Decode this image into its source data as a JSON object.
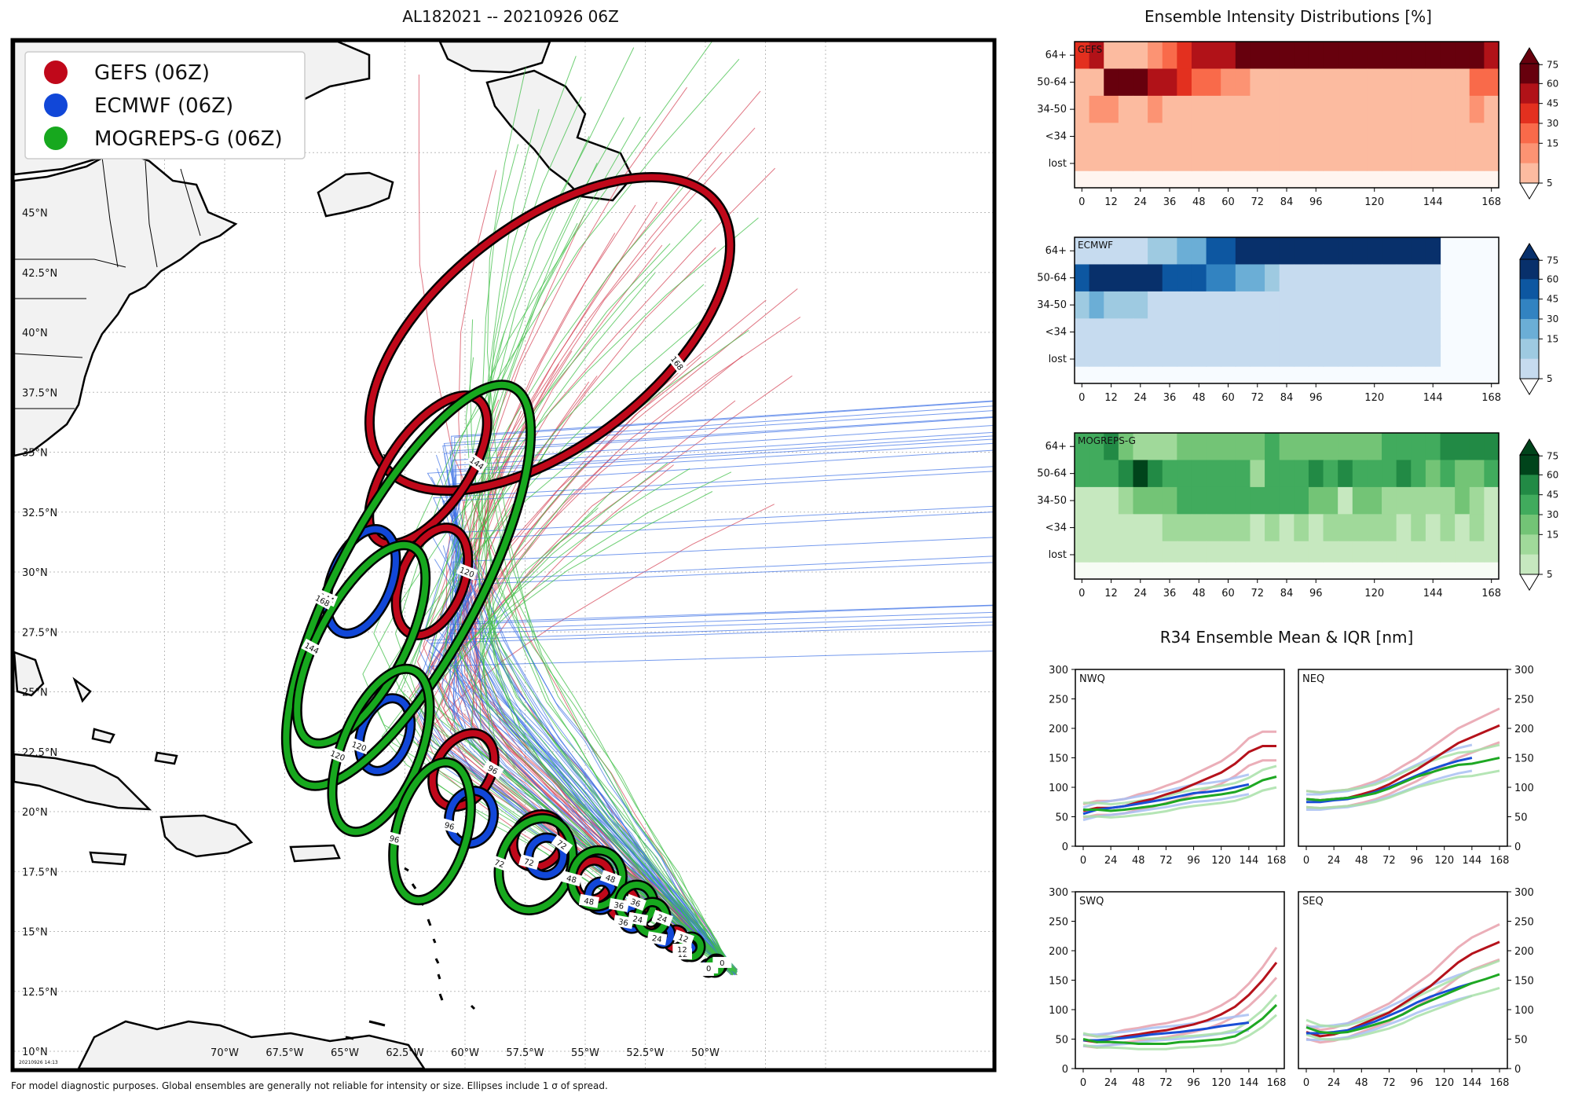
{
  "map": {
    "title": "AL182021 -- 20210926 06Z",
    "footnote": "For model diagnostic purposes. Global ensembles are generally not reliable for intensity or size. Ellipses include 1 σ of spread.",
    "stamp": "20210926 14:13",
    "lat_labels": [
      "45°N",
      "42.5°N",
      "40°N",
      "37.5°N",
      "35°N",
      "32.5°N",
      "30°N",
      "27.5°N",
      "25°N",
      "22.5°N",
      "20°N",
      "17.5°N",
      "15°N",
      "12.5°N",
      "10°N"
    ],
    "lon_labels": [
      "70°W",
      "67.5°W",
      "65°W",
      "62.5°W",
      "60°W",
      "57.5°W",
      "55°W",
      "52.5°W",
      "50°W"
    ],
    "legend": [
      {
        "name": "GEFS (06Z)",
        "color": "#c0081a"
      },
      {
        "name": "ECMWF (06Z)",
        "color": "#1147d8"
      },
      {
        "name": "MOGREPS-G (06Z)",
        "color": "#17a81e"
      }
    ]
  },
  "intensity": {
    "title": "Ensemble Intensity Distributions [%]",
    "rows": [
      "64+",
      "50-64",
      "34-50",
      "<34",
      "lost"
    ],
    "xticks": [
      "0",
      "12",
      "24",
      "36",
      "48",
      "60",
      "72",
      "84",
      "96",
      "120",
      "144",
      "168"
    ],
    "colorbar_ticks": [
      "75",
      "60",
      "45",
      "30",
      "15",
      "5"
    ],
    "panels": [
      {
        "name": "GEFS",
        "colors": [
          "#fee3d6",
          "#fcbba0",
          "#fc9373",
          "#f96a4a",
          "#e3301f",
          "#b11218",
          "#67000d"
        ]
      },
      {
        "name": "ECMWF",
        "colors": [
          "#e5eff9",
          "#c6dbef",
          "#9ecae1",
          "#6baed6",
          "#3283c1",
          "#0d57a1",
          "#08306b"
        ]
      },
      {
        "name": "MOGREPS-G",
        "colors": [
          "#e5f5e0",
          "#c6e8bf",
          "#a0d99a",
          "#73c476",
          "#41ab5d",
          "#228a45",
          "#00441b"
        ]
      }
    ]
  },
  "r34": {
    "title": "R34 Ensemble Mean & IQR [nm]",
    "yticks": [
      "300",
      "250",
      "200",
      "150",
      "100",
      "50",
      "0"
    ],
    "xticks": [
      "0",
      "24",
      "48",
      "72",
      "96",
      "120",
      "144",
      "168"
    ],
    "quadrants": [
      "NWQ",
      "NEQ",
      "SWQ",
      "SEQ"
    ]
  },
  "chart_data": {
    "type": "heatmap",
    "intensity_distributions": {
      "hours": [
        0,
        6,
        12,
        18,
        24,
        30,
        36,
        42,
        48,
        54,
        60,
        66,
        72,
        78,
        84,
        90,
        96,
        102,
        108,
        114,
        120,
        126,
        132,
        138,
        144,
        150,
        156,
        162,
        168
      ],
      "GEFS": {
        "64+": [
          45,
          60,
          5,
          5,
          10,
          20,
          40,
          50,
          60,
          60,
          70,
          75,
          75,
          75,
          75,
          75,
          75,
          75,
          75,
          75,
          75,
          75,
          75,
          75,
          75,
          75,
          75,
          75,
          60
        ],
        "50-64": [
          5,
          5,
          75,
          75,
          75,
          60,
          60,
          45,
          30,
          30,
          15,
          15,
          5,
          5,
          5,
          5,
          5,
          5,
          5,
          5,
          5,
          5,
          5,
          5,
          5,
          5,
          5,
          30,
          30
        ],
        "34-50": [
          5,
          15,
          15,
          5,
          5,
          15,
          5,
          5,
          5,
          5,
          5,
          5,
          5,
          5,
          5,
          5,
          5,
          5,
          5,
          5,
          5,
          5,
          5,
          5,
          5,
          5,
          5,
          15,
          5
        ],
        "<34": [
          5,
          5,
          5,
          5,
          5,
          5,
          5,
          5,
          5,
          5,
          5,
          5,
          5,
          5,
          5,
          5,
          5,
          5,
          5,
          5,
          5,
          5,
          5,
          5,
          5,
          5,
          5,
          5,
          5
        ],
        "lost": [
          5,
          5,
          5,
          5,
          5,
          5,
          5,
          5,
          5,
          5,
          5,
          5,
          5,
          5,
          5,
          5,
          5,
          5,
          5,
          5,
          5,
          5,
          5,
          5,
          5,
          5,
          5,
          5,
          5
        ]
      },
      "ECMWF": {
        "64+": [
          5,
          5,
          5,
          5,
          5,
          15,
          15,
          30,
          30,
          60,
          60,
          75,
          75,
          75,
          75,
          75,
          75,
          75,
          75,
          75,
          75,
          75,
          75,
          75,
          75
        ],
        "50-64": [
          60,
          75,
          75,
          75,
          75,
          75,
          60,
          60,
          60,
          45,
          45,
          30,
          30,
          15,
          5,
          5,
          5,
          5,
          5,
          5,
          5,
          5,
          5,
          5,
          5
        ],
        "34-50": [
          15,
          30,
          15,
          15,
          15,
          5,
          5,
          5,
          5,
          5,
          5,
          5,
          5,
          5,
          5,
          5,
          5,
          5,
          5,
          5,
          5,
          5,
          5,
          5,
          5
        ],
        "<34": [
          5,
          5,
          5,
          5,
          5,
          5,
          5,
          5,
          5,
          5,
          5,
          5,
          5,
          5,
          5,
          5,
          5,
          5,
          5,
          5,
          5,
          5,
          5,
          5,
          5
        ],
        "lost": [
          5,
          5,
          5,
          5,
          5,
          5,
          5,
          5,
          5,
          5,
          5,
          5,
          5,
          5,
          5,
          5,
          5,
          5,
          5,
          5,
          5,
          5,
          5,
          5,
          5
        ]
      },
      "MOGREPS-G": {
        "64+": [
          45,
          45,
          60,
          30,
          15,
          15,
          15,
          30,
          30,
          30,
          30,
          30,
          30,
          45,
          30,
          30,
          30,
          30,
          30,
          30,
          30,
          45,
          45,
          45,
          45,
          60,
          60,
          60,
          60
        ],
        "50-64": [
          45,
          45,
          45,
          60,
          75,
          60,
          45,
          45,
          45,
          45,
          45,
          45,
          15,
          45,
          45,
          45,
          60,
          45,
          60,
          45,
          45,
          45,
          60,
          45,
          30,
          45,
          30,
          30,
          45
        ],
        "34-50": [
          5,
          5,
          5,
          15,
          30,
          30,
          30,
          45,
          45,
          45,
          45,
          45,
          45,
          45,
          45,
          45,
          30,
          30,
          5,
          30,
          30,
          15,
          15,
          15,
          15,
          15,
          30,
          15,
          5
        ],
        "<34": [
          5,
          5,
          5,
          5,
          5,
          5,
          15,
          15,
          15,
          15,
          15,
          15,
          5,
          15,
          5,
          15,
          5,
          15,
          15,
          15,
          15,
          15,
          5,
          15,
          5,
          15,
          5,
          15,
          5
        ],
        "lost": [
          5,
          5,
          5,
          5,
          5,
          5,
          5,
          5,
          5,
          5,
          5,
          5,
          5,
          5,
          5,
          5,
          5,
          5,
          5,
          5,
          5,
          5,
          5,
          5,
          5,
          5,
          5,
          5,
          5
        ]
      }
    },
    "r34_mean": {
      "hours": [
        0,
        12,
        24,
        36,
        48,
        60,
        72,
        84,
        96,
        108,
        120,
        132,
        144,
        156,
        168
      ],
      "NWQ": {
        "GEFS": [
          60,
          65,
          65,
          68,
          75,
          80,
          88,
          95,
          105,
          115,
          125,
          140,
          160,
          170,
          170
        ],
        "ECMWF": [
          55,
          62,
          65,
          68,
          72,
          76,
          80,
          85,
          90,
          92,
          95,
          100,
          105
        ],
        "MOGREPS-G": [
          62,
          62,
          60,
          62,
          65,
          68,
          72,
          78,
          82,
          85,
          88,
          92,
          100,
          112,
          118
        ]
      },
      "NEQ": {
        "GEFS": [
          80,
          78,
          80,
          82,
          88,
          95,
          105,
          118,
          130,
          145,
          160,
          175,
          185,
          195,
          205
        ],
        "ECMWF": [
          75,
          75,
          78,
          80,
          85,
          92,
          100,
          110,
          120,
          130,
          138,
          145,
          150
        ],
        "MOGREPS-G": [
          80,
          78,
          80,
          82,
          85,
          90,
          98,
          108,
          118,
          125,
          132,
          138,
          140,
          145,
          150
        ]
      },
      "SWQ": {
        "GEFS": [
          48,
          45,
          50,
          55,
          58,
          62,
          65,
          70,
          75,
          82,
          92,
          105,
          125,
          150,
          180
        ],
        "ECMWF": [
          48,
          48,
          50,
          52,
          55,
          58,
          60,
          62,
          65,
          68,
          72,
          75,
          78
        ],
        "MOGREPS-G": [
          50,
          45,
          45,
          44,
          42,
          42,
          42,
          45,
          46,
          48,
          50,
          55,
          68,
          85,
          108
        ]
      },
      "SEQ": {
        "GEFS": [
          62,
          55,
          58,
          65,
          75,
          85,
          95,
          110,
          125,
          140,
          160,
          180,
          195,
          205,
          215
        ],
        "ECMWF": [
          60,
          60,
          62,
          65,
          72,
          80,
          90,
          100,
          112,
          122,
          130,
          138,
          145
        ],
        "MOGREPS-G": [
          70,
          62,
          60,
          62,
          68,
          75,
          82,
          92,
          105,
          115,
          125,
          135,
          145,
          152,
          160
        ]
      }
    }
  }
}
